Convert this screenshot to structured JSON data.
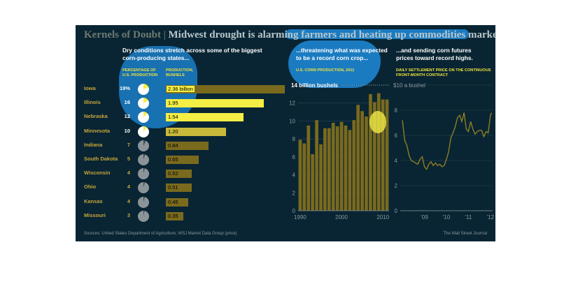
{
  "title": {
    "main": "Kernels of Doubt",
    "separator": "|",
    "sub": "Midwest drought is alarming farmers and heating up commodities markets"
  },
  "section1": {
    "heading": "Dry conditions stretch across some of the biggest corn-producing states...",
    "col_pct": "Percentage of U.S. production",
    "col_prod": "Production, bushels"
  },
  "section2": {
    "heading": "...threatening what was expected to be a record corn crop...",
    "chart_label": "U.S. corn production, 2011",
    "unit_label": "14 billion bushels"
  },
  "section3": {
    "heading": "...and sending corn futures prices toward record highs.",
    "chart_label": "Daily settlement price on the continuous front-month contract",
    "unit_label": "$10 a bushel"
  },
  "footer": {
    "source": "Sources: United States Department of Agriculture; WSJ Market Data Group (price)",
    "credit": "The Wall Street Journal"
  },
  "colors": {
    "background": "#092533",
    "gold": "#c6a43b",
    "olive_bar": "#7a6a1e",
    "highlight_yellow": "#f4ee45",
    "blue_highlight": "#1e8fe0"
  },
  "chart_data": [
    {
      "type": "bar",
      "categories": [
        "Iowa",
        "Illinois",
        "Nebraska",
        "Minnesota",
        "Indiana",
        "South Dakota",
        "Wisconsin",
        "Ohio",
        "Kansas",
        "Missouri"
      ],
      "pct_labels": [
        "19%",
        "16",
        "12",
        "10",
        "7",
        "5",
        "4",
        "4",
        "4",
        "3"
      ],
      "percent": [
        19,
        16,
        12,
        10,
        7,
        5,
        4,
        4,
        4,
        3
      ],
      "values": [
        2.36,
        1.95,
        1.54,
        1.2,
        0.84,
        0.65,
        0.52,
        0.51,
        0.45,
        0.35
      ],
      "value_labels": [
        "2.36 billion",
        "1.95",
        "1.54",
        "1.20",
        "0.84",
        "0.65",
        "0.52",
        "0.51",
        "0.45",
        "0.35"
      ],
      "highlighted": [
        "Iowa",
        "Illinois",
        "Nebraska",
        "Minnesota"
      ],
      "xlabel": "Production, bushels"
    },
    {
      "type": "bar",
      "x": [
        1990,
        1991,
        1992,
        1993,
        1994,
        1995,
        1996,
        1997,
        1998,
        1999,
        2000,
        2001,
        2002,
        2003,
        2004,
        2005,
        2006,
        2007,
        2008,
        2009,
        2010,
        2011
      ],
      "values": [
        7.9,
        7.5,
        9.5,
        6.3,
        10.1,
        7.4,
        9.2,
        9.2,
        9.8,
        9.4,
        9.9,
        9.5,
        9.0,
        10.1,
        11.8,
        11.1,
        10.5,
        13.0,
        12.1,
        13.1,
        12.4,
        12.4
      ],
      "ylim": [
        0,
        14
      ],
      "yticks": [
        "0",
        "2",
        "4",
        "6",
        "8",
        "10",
        "12",
        "14"
      ],
      "xticks": [
        "1990",
        "2000",
        "2010"
      ],
      "ylabel": "billion bushels"
    },
    {
      "type": "line",
      "x": [
        2008.5,
        2008.6,
        2008.7,
        2008.8,
        2008.9,
        2009.0,
        2009.1,
        2009.2,
        2009.3,
        2009.4,
        2009.5,
        2009.6,
        2009.7,
        2009.8,
        2009.9,
        2010.0,
        2010.1,
        2010.2,
        2010.3,
        2010.4,
        2010.5,
        2010.6,
        2010.7,
        2010.8,
        2010.9,
        2011.0,
        2011.1,
        2011.2,
        2011.3,
        2011.4,
        2011.5,
        2011.6,
        2011.7,
        2011.8,
        2011.9,
        2012.0,
        2012.1,
        2012.2,
        2012.3,
        2012.4,
        2012.5,
        2012.55
      ],
      "values": [
        7.2,
        5.6,
        5.2,
        4.4,
        4.0,
        3.9,
        3.8,
        3.7,
        4.1,
        4.3,
        3.5,
        3.3,
        3.7,
        3.9,
        3.6,
        3.8,
        3.6,
        3.7,
        3.5,
        3.6,
        4.1,
        4.7,
        5.8,
        6.2,
        6.7,
        7.4,
        7.6,
        7.1,
        7.8,
        6.5,
        6.3,
        7.1,
        6.5,
        6.1,
        6.3,
        6.4,
        6.4,
        5.9,
        6.3,
        6.2,
        7.6,
        7.8
      ],
      "ylim": [
        0,
        10
      ],
      "yticks": [
        "0",
        "2",
        "4",
        "6",
        "8",
        "$10 a bushel"
      ],
      "xticks": [
        "'09",
        "'10",
        "'11",
        "'12"
      ],
      "ylabel": "$ a bushel"
    }
  ]
}
